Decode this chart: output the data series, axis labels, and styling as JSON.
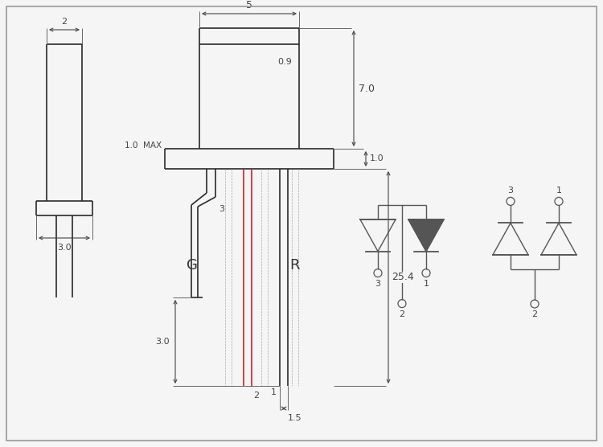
{
  "bg_color": "#f5f5f5",
  "line_color": "#2a2a2a",
  "red_wire": "#cc2222",
  "sym_color": "#555555",
  "labels": {
    "dim_5": "5",
    "dim_7": "7.0",
    "dim_09": "0.9",
    "dim_10": "1.0",
    "dim_10max": "1.0  MAX",
    "dim_254": "25.4",
    "dim_15": "1.5",
    "dim_30a": "3.0",
    "dim_30b": "3.0",
    "dim_2": "2",
    "label_G": "G",
    "label_R": "R",
    "n1": "1",
    "n2": "2",
    "n3": "3"
  }
}
